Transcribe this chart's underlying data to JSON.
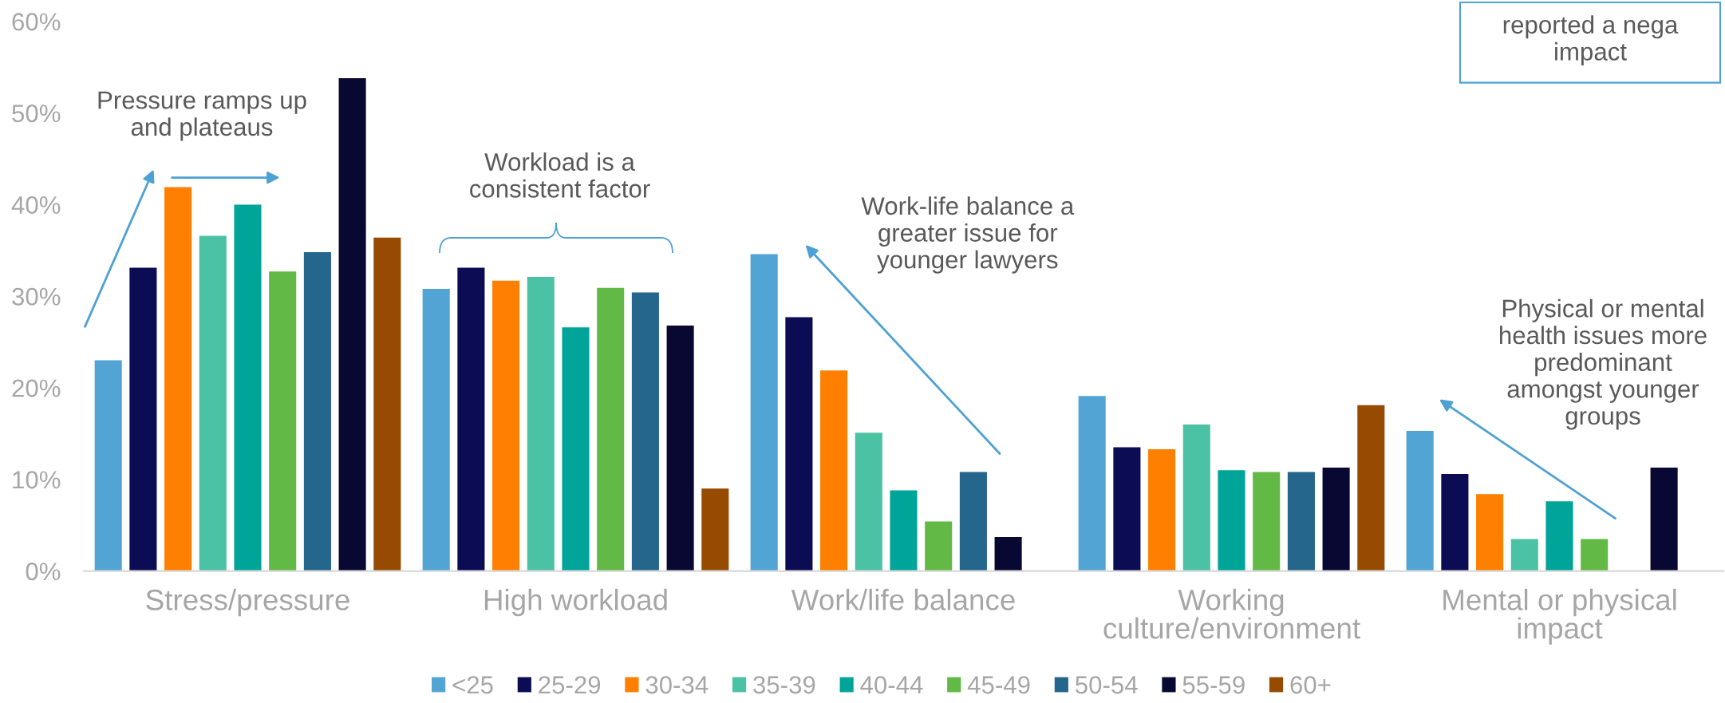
{
  "chart_data": {
    "type": "bar",
    "categories": [
      "Stress/pressure",
      "High workload",
      "Work/life balance",
      "Working\nculture/environment",
      "Mental or physical\nimpact"
    ],
    "series": [
      {
        "name": "<25",
        "color": "#52a4d4",
        "values": [
          23.0,
          30.8,
          34.6,
          19.1,
          15.3
        ]
      },
      {
        "name": "25-29",
        "color": "#0c0c55",
        "values": [
          33.1,
          33.1,
          27.7,
          13.5,
          10.6
        ]
      },
      {
        "name": "30-34",
        "color": "#ff8000",
        "values": [
          41.9,
          31.7,
          21.9,
          13.3,
          8.4
        ]
      },
      {
        "name": "35-39",
        "color": "#4cc2a5",
        "values": [
          36.6,
          32.1,
          15.1,
          16.0,
          3.5
        ]
      },
      {
        "name": "40-44",
        "color": "#00a499",
        "values": [
          40.0,
          26.6,
          8.8,
          11.0,
          7.6
        ]
      },
      {
        "name": "45-49",
        "color": "#62b946",
        "values": [
          32.7,
          30.9,
          5.4,
          10.8,
          3.5
        ]
      },
      {
        "name": "50-54",
        "color": "#24668c",
        "values": [
          34.8,
          30.4,
          10.8,
          10.8,
          null
        ]
      },
      {
        "name": "55-59",
        "color": "#080833",
        "values": [
          53.8,
          26.8,
          3.7,
          11.3,
          11.3
        ]
      },
      {
        "name": "60+",
        "color": "#964b00",
        "values": [
          36.4,
          9.0,
          null,
          18.1,
          null
        ]
      }
    ],
    "ylim": [
      0,
      60
    ],
    "yticks": [
      {
        "value": 0,
        "label": "0%"
      },
      {
        "value": 10,
        "label": "10%"
      },
      {
        "value": 20,
        "label": "20%"
      },
      {
        "value": 30,
        "label": "30%"
      },
      {
        "value": 40,
        "label": "40%"
      },
      {
        "value": 50,
        "label": "50%"
      },
      {
        "value": 60,
        "label": "60%"
      }
    ],
    "legend": "bottom",
    "annotations": [
      "Pressure ramps up\nand plateaus",
      "Workload is a\nconsistent factor",
      "Work-life balance a\ngreater issue for\nyounger lawyers",
      "Physical or mental\nhealth issues more\npredominant\namongst younger\ngroups",
      "reported a nega\nimpact"
    ]
  }
}
